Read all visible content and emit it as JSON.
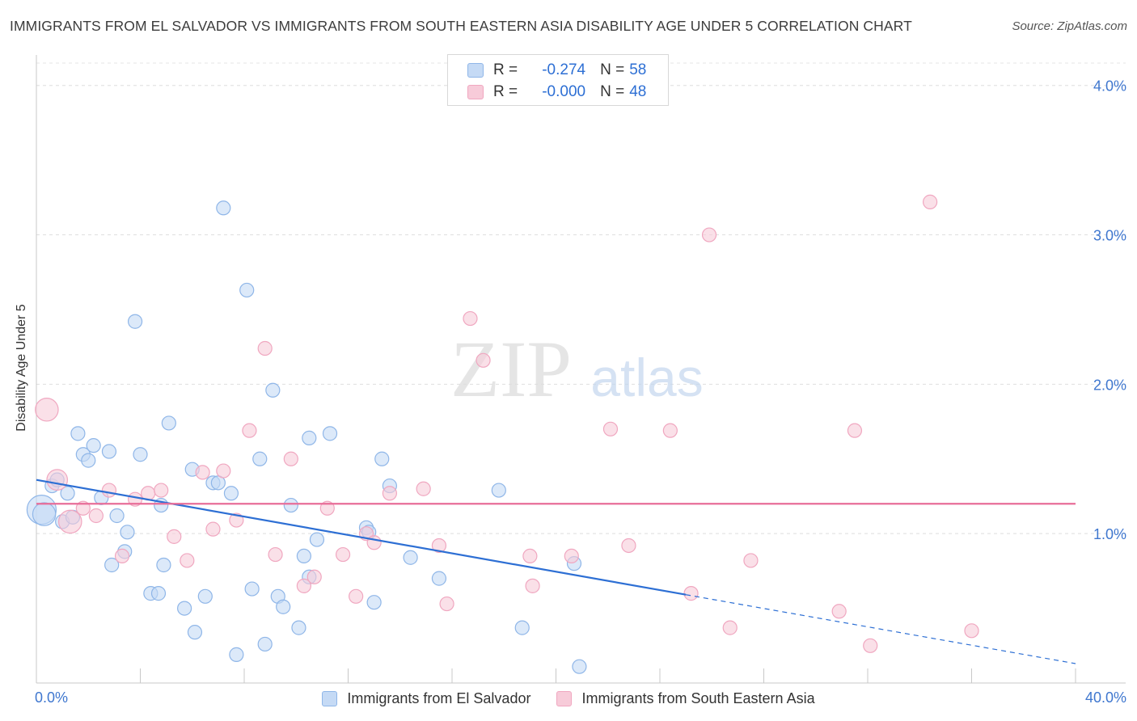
{
  "title": "IMMIGRANTS FROM EL SALVADOR VS IMMIGRANTS FROM SOUTH EASTERN ASIA DISABILITY AGE UNDER 5 CORRELATION CHART",
  "source": "Source: ZipAtlas.com",
  "watermark": {
    "zip": "ZIP",
    "atlas": "atlas"
  },
  "legend": {
    "rows": [
      {
        "r_label": "R =",
        "r_value": "-0.274",
        "n_label": "N =",
        "n_value": "58"
      },
      {
        "r_label": "R =",
        "r_value": "-0.000",
        "n_label": "N =",
        "n_value": "48"
      }
    ]
  },
  "chart_data": {
    "type": "scatter",
    "title": "IMMIGRANTS FROM EL SALVADOR VS IMMIGRANTS FROM SOUTH EASTERN ASIA DISABILITY AGE UNDER 5 CORRELATION CHART",
    "xlabel": "",
    "ylabel": "Disability Age Under 5",
    "xlim": [
      0,
      40
    ],
    "ylim": [
      0,
      4.15
    ],
    "x_tick_labels": [
      "0.0%",
      "40.0%"
    ],
    "y_ticks": [
      1.0,
      2.0,
      3.0,
      4.0
    ],
    "y_tick_labels": [
      "1.0%",
      "2.0%",
      "3.0%",
      "4.0%"
    ],
    "grid": true,
    "legend_position": "bottom-center",
    "series": [
      {
        "name": "Immigrants from El Salvador",
        "color": "#8fb6e8",
        "fill": "#c5daf5",
        "trend_color": "#2d6fd4",
        "trend": {
          "x_start": 0,
          "y_start": 1.36,
          "x_end": 40,
          "y_end": 0.13,
          "solid_until_x": 25
        },
        "points": [
          [
            0.2,
            1.16,
            1.3
          ],
          [
            0.3,
            1.13,
            1.0
          ],
          [
            0.6,
            1.32,
            0.6
          ],
          [
            0.8,
            1.36,
            0.6
          ],
          [
            1.0,
            1.08,
            0.6
          ],
          [
            1.2,
            1.27,
            0.6
          ],
          [
            1.4,
            1.11,
            0.6
          ],
          [
            1.6,
            1.67,
            0.6
          ],
          [
            1.8,
            1.53,
            0.6
          ],
          [
            2.0,
            1.49,
            0.6
          ],
          [
            2.2,
            1.59,
            0.6
          ],
          [
            2.5,
            1.24,
            0.6
          ],
          [
            2.8,
            1.55,
            0.6
          ],
          [
            2.9,
            0.79,
            0.6
          ],
          [
            3.1,
            1.12,
            0.6
          ],
          [
            3.4,
            0.88,
            0.6
          ],
          [
            3.5,
            1.01,
            0.6
          ],
          [
            3.8,
            2.42,
            0.6
          ],
          [
            4.0,
            1.53,
            0.6
          ],
          [
            4.4,
            0.6,
            0.6
          ],
          [
            4.7,
            0.6,
            0.6
          ],
          [
            4.8,
            1.19,
            0.6
          ],
          [
            4.9,
            0.79,
            0.6
          ],
          [
            5.1,
            1.74,
            0.6
          ],
          [
            5.7,
            0.5,
            0.6
          ],
          [
            6.0,
            1.43,
            0.6
          ],
          [
            6.1,
            0.34,
            0.6
          ],
          [
            6.5,
            0.58,
            0.6
          ],
          [
            6.8,
            1.34,
            0.6
          ],
          [
            7.0,
            1.34,
            0.6
          ],
          [
            7.2,
            3.18,
            0.6
          ],
          [
            7.5,
            1.27,
            0.6
          ],
          [
            7.7,
            0.19,
            0.6
          ],
          [
            8.1,
            2.63,
            0.6
          ],
          [
            8.3,
            0.63,
            0.6
          ],
          [
            8.6,
            1.5,
            0.6
          ],
          [
            8.8,
            0.26,
            0.6
          ],
          [
            9.1,
            1.96,
            0.6
          ],
          [
            9.3,
            0.58,
            0.6
          ],
          [
            9.5,
            0.51,
            0.6
          ],
          [
            9.8,
            1.19,
            0.6
          ],
          [
            10.1,
            0.37,
            0.6
          ],
          [
            10.3,
            0.85,
            0.6
          ],
          [
            10.5,
            1.64,
            0.6
          ],
          [
            10.5,
            0.71,
            0.6
          ],
          [
            10.8,
            0.96,
            0.6
          ],
          [
            11.3,
            1.67,
            0.6
          ],
          [
            12.7,
            1.04,
            0.6
          ],
          [
            12.8,
            1.01,
            0.6
          ],
          [
            13.0,
            0.54,
            0.6
          ],
          [
            13.3,
            1.5,
            0.6
          ],
          [
            13.6,
            1.32,
            0.6
          ],
          [
            14.4,
            0.84,
            0.6
          ],
          [
            15.5,
            0.7,
            0.6
          ],
          [
            17.8,
            1.29,
            0.6
          ],
          [
            18.7,
            0.37,
            0.6
          ],
          [
            20.7,
            0.8,
            0.6
          ],
          [
            20.9,
            0.11,
            0.6
          ]
        ]
      },
      {
        "name": "Immigrants from South Eastern Asia",
        "color": "#f0a7c0",
        "fill": "#f7cbd9",
        "trend_color": "#e86d98",
        "trend": {
          "x_start": 0,
          "y_start": 1.2,
          "x_end": 40,
          "y_end": 1.2
        },
        "points": [
          [
            0.4,
            1.83,
            1.0
          ],
          [
            0.8,
            1.36,
            0.9
          ],
          [
            1.3,
            1.08,
            1.0
          ],
          [
            1.8,
            1.17,
            0.6
          ],
          [
            2.3,
            1.12,
            0.6
          ],
          [
            2.8,
            1.29,
            0.6
          ],
          [
            3.3,
            0.85,
            0.6
          ],
          [
            3.8,
            1.23,
            0.6
          ],
          [
            4.3,
            1.27,
            0.6
          ],
          [
            4.8,
            1.29,
            0.6
          ],
          [
            5.3,
            0.98,
            0.6
          ],
          [
            5.8,
            0.82,
            0.6
          ],
          [
            6.4,
            1.41,
            0.6
          ],
          [
            6.8,
            1.03,
            0.6
          ],
          [
            7.2,
            1.42,
            0.6
          ],
          [
            7.7,
            1.09,
            0.6
          ],
          [
            8.2,
            1.69,
            0.6
          ],
          [
            8.8,
            2.24,
            0.6
          ],
          [
            9.2,
            0.86,
            0.6
          ],
          [
            9.8,
            1.5,
            0.6
          ],
          [
            10.3,
            0.65,
            0.6
          ],
          [
            10.7,
            0.71,
            0.6
          ],
          [
            11.2,
            1.17,
            0.6
          ],
          [
            11.8,
            0.86,
            0.6
          ],
          [
            12.3,
            0.58,
            0.6
          ],
          [
            12.7,
            1.0,
            0.6
          ],
          [
            13.0,
            0.94,
            0.6
          ],
          [
            13.6,
            1.27,
            0.6
          ],
          [
            14.9,
            1.3,
            0.6
          ],
          [
            15.5,
            0.92,
            0.6
          ],
          [
            15.8,
            0.53,
            0.6
          ],
          [
            16.7,
            2.44,
            0.6
          ],
          [
            17.2,
            2.16,
            0.6
          ],
          [
            19.0,
            0.85,
            0.6
          ],
          [
            19.1,
            0.65,
            0.6
          ],
          [
            20.6,
            0.85,
            0.6
          ],
          [
            22.1,
            1.7,
            0.6
          ],
          [
            22.8,
            0.92,
            0.6
          ],
          [
            24.4,
            1.69,
            0.6
          ],
          [
            25.2,
            0.6,
            0.6
          ],
          [
            25.9,
            3.0,
            0.6
          ],
          [
            26.7,
            0.37,
            0.6
          ],
          [
            27.5,
            0.82,
            0.6
          ],
          [
            30.9,
            0.48,
            0.6
          ],
          [
            31.5,
            1.69,
            0.6
          ],
          [
            32.1,
            0.25,
            0.6
          ],
          [
            34.4,
            3.22,
            0.6
          ],
          [
            36.0,
            0.35,
            0.6
          ]
        ]
      }
    ]
  }
}
